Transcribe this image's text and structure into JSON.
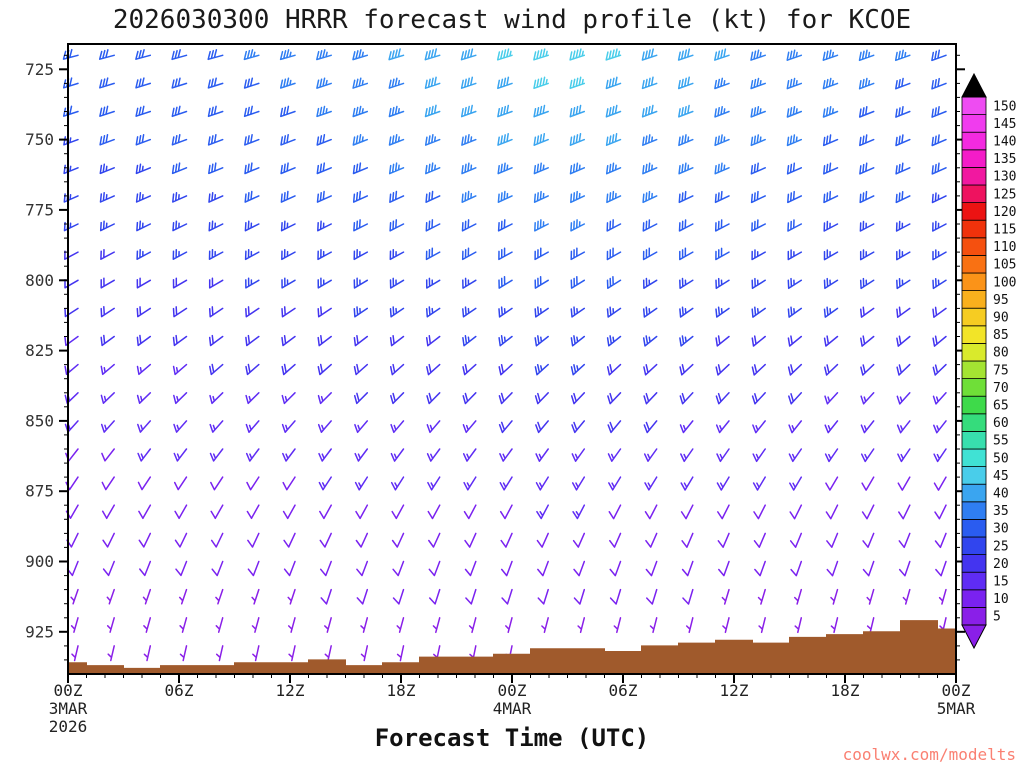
{
  "title": "2026030300 HRRR forecast wind profile (kt) for KCOE",
  "watermark": "coolwx.com/modelts",
  "watermark_color": "#fa8072",
  "chart_data": {
    "type": "heatmap",
    "subtype": "wind-barb-time-height",
    "title": "2026030300 HRRR forecast wind profile (kt) for KCOE",
    "xlabel": "Forecast Time (UTC)",
    "ylabel": "",
    "y_domain": [
      716,
      940
    ],
    "y_ticks": [
      725,
      750,
      775,
      800,
      825,
      850,
      875,
      900,
      925
    ],
    "x_ticks": [
      {
        "hour": 0,
        "label": "00Z",
        "date": "3MAR",
        "year": "2026"
      },
      {
        "hour": 6,
        "label": "06Z"
      },
      {
        "hour": 12,
        "label": "12Z"
      },
      {
        "hour": 18,
        "label": "18Z"
      },
      {
        "hour": 24,
        "label": "00Z",
        "date": "4MAR"
      },
      {
        "hour": 30,
        "label": "06Z"
      },
      {
        "hour": 36,
        "label": "12Z"
      },
      {
        "hour": 42,
        "label": "18Z"
      },
      {
        "hour": 48,
        "label": "00Z",
        "date": "5MAR"
      }
    ],
    "x_hours": [
      0,
      2,
      4,
      6,
      8,
      10,
      12,
      14,
      16,
      18,
      20,
      22,
      24,
      26,
      28,
      30,
      32,
      34,
      36,
      38,
      40,
      42,
      44,
      46,
      48
    ],
    "levels_hpa": [
      720,
      730,
      740,
      750,
      760,
      770,
      780,
      790,
      800,
      810,
      820,
      830,
      840,
      850,
      860,
      870,
      880,
      890,
      900,
      910,
      920,
      930
    ],
    "speeds_kt": [
      [
        30,
        30,
        31,
        32,
        32,
        33,
        34,
        35,
        36,
        38,
        40,
        42,
        43,
        45,
        45,
        44,
        42,
        40,
        38,
        37,
        36,
        35,
        34,
        33,
        32
      ],
      [
        30,
        30,
        30,
        31,
        32,
        32,
        33,
        34,
        35,
        37,
        39,
        41,
        42,
        43,
        43,
        42,
        41,
        39,
        37,
        36,
        35,
        34,
        33,
        32,
        31
      ],
      [
        28,
        29,
        29,
        30,
        31,
        31,
        32,
        33,
        34,
        36,
        38,
        39,
        40,
        41,
        41,
        40,
        39,
        38,
        36,
        35,
        34,
        33,
        32,
        31,
        30
      ],
      [
        27,
        28,
        28,
        29,
        30,
        30,
        31,
        32,
        33,
        35,
        36,
        37,
        38,
        39,
        39,
        38,
        37,
        36,
        35,
        34,
        33,
        32,
        31,
        30,
        29
      ],
      [
        26,
        27,
        27,
        28,
        28,
        29,
        30,
        31,
        32,
        33,
        34,
        35,
        36,
        37,
        37,
        36,
        35,
        34,
        33,
        32,
        31,
        31,
        30,
        29,
        28
      ],
      [
        25,
        25,
        26,
        26,
        27,
        28,
        28,
        29,
        30,
        31,
        32,
        33,
        34,
        35,
        35,
        34,
        33,
        32,
        31,
        30,
        30,
        29,
        28,
        28,
        27
      ],
      [
        23,
        24,
        24,
        25,
        25,
        26,
        27,
        27,
        28,
        29,
        30,
        31,
        32,
        33,
        33,
        32,
        31,
        30,
        29,
        29,
        28,
        27,
        27,
        26,
        26
      ],
      [
        22,
        22,
        23,
        23,
        24,
        24,
        25,
        26,
        26,
        27,
        28,
        29,
        30,
        31,
        31,
        30,
        29,
        28,
        28,
        27,
        26,
        26,
        25,
        25,
        24
      ],
      [
        20,
        21,
        21,
        22,
        22,
        23,
        23,
        24,
        25,
        25,
        26,
        27,
        28,
        29,
        29,
        28,
        27,
        26,
        26,
        25,
        25,
        24,
        24,
        23,
        23
      ],
      [
        19,
        19,
        20,
        20,
        21,
        21,
        22,
        22,
        23,
        23,
        24,
        25,
        26,
        27,
        27,
        26,
        25,
        25,
        24,
        24,
        23,
        23,
        22,
        22,
        21
      ],
      [
        17,
        18,
        18,
        19,
        19,
        20,
        20,
        21,
        21,
        22,
        22,
        23,
        24,
        25,
        25,
        24,
        23,
        23,
        22,
        22,
        21,
        21,
        20,
        20,
        19
      ],
      [
        16,
        16,
        17,
        17,
        18,
        18,
        19,
        19,
        20,
        20,
        21,
        21,
        22,
        23,
        23,
        22,
        22,
        21,
        21,
        20,
        20,
        19,
        19,
        18,
        18
      ],
      [
        15,
        15,
        15,
        16,
        16,
        17,
        17,
        17,
        18,
        18,
        19,
        19,
        20,
        21,
        21,
        20,
        20,
        19,
        19,
        18,
        18,
        17,
        17,
        17,
        16
      ],
      [
        13,
        14,
        14,
        14,
        15,
        15,
        15,
        16,
        16,
        16,
        17,
        17,
        18,
        19,
        19,
        18,
        18,
        17,
        17,
        16,
        16,
        16,
        15,
        15,
        15
      ],
      [
        12,
        12,
        13,
        13,
        13,
        13,
        14,
        14,
        14,
        15,
        15,
        15,
        16,
        17,
        17,
        16,
        16,
        15,
        15,
        15,
        14,
        14,
        14,
        13,
        13
      ],
      [
        11,
        11,
        11,
        12,
        12,
        12,
        12,
        13,
        13,
        13,
        13,
        14,
        14,
        15,
        15,
        14,
        14,
        13,
        13,
        13,
        13,
        12,
        12,
        12,
        12
      ],
      [
        10,
        10,
        10,
        10,
        11,
        11,
        11,
        11,
        11,
        12,
        12,
        12,
        12,
        13,
        13,
        12,
        12,
        12,
        12,
        11,
        11,
        11,
        11,
        10,
        10
      ],
      [
        9,
        9,
        9,
        9,
        9,
        10,
        10,
        10,
        10,
        10,
        10,
        11,
        11,
        11,
        11,
        11,
        11,
        10,
        10,
        10,
        10,
        10,
        9,
        9,
        9
      ],
      [
        8,
        8,
        8,
        8,
        8,
        8,
        9,
        9,
        9,
        9,
        9,
        9,
        9,
        10,
        10,
        10,
        9,
        9,
        9,
        9,
        8,
        8,
        8,
        8,
        8
      ],
      [
        7,
        7,
        7,
        7,
        7,
        7,
        7,
        8,
        8,
        8,
        8,
        8,
        8,
        8,
        8,
        8,
        8,
        8,
        7,
        7,
        7,
        7,
        7,
        7,
        7
      ],
      [
        6,
        6,
        6,
        6,
        6,
        6,
        6,
        6,
        6,
        7,
        7,
        7,
        7,
        7,
        7,
        7,
        7,
        6,
        6,
        6,
        6,
        6,
        6,
        6,
        6
      ],
      [
        5,
        5,
        5,
        5,
        5,
        5,
        5,
        5,
        5,
        5,
        5,
        6,
        6,
        6,
        6,
        6,
        5,
        5,
        5,
        5,
        5,
        5,
        5,
        5,
        5
      ]
    ],
    "dir_start_deg": [
      255,
      253,
      252,
      250,
      248,
      246,
      244,
      242,
      240,
      237,
      234,
      230,
      226,
      222,
      218,
      214,
      210,
      206,
      202,
      199,
      196,
      193
    ],
    "dir_end_deg": [
      250,
      249,
      248,
      247,
      246,
      244,
      242,
      240,
      237,
      234,
      230,
      226,
      222,
      218,
      214,
      210,
      206,
      202,
      199,
      196,
      193,
      190
    ],
    "terrain_top_hpa": [
      936,
      937,
      938,
      937,
      937,
      936,
      936,
      935,
      937,
      936,
      934,
      934,
      933,
      931,
      931,
      932,
      930,
      929,
      928,
      929,
      927,
      926,
      925,
      921,
      924
    ],
    "terrain_color": "#a05a2c",
    "colorbar": {
      "values": [
        5,
        10,
        15,
        20,
        25,
        30,
        35,
        40,
        45,
        50,
        55,
        60,
        65,
        70,
        75,
        80,
        85,
        90,
        95,
        100,
        105,
        110,
        115,
        120,
        125,
        130,
        135,
        140,
        145,
        150
      ],
      "colors": [
        "#8a1fe8",
        "#7a22f0",
        "#5f2cf4",
        "#4434f0",
        "#3145ee",
        "#2a5cf0",
        "#2f7ef2",
        "#3aa5f0",
        "#49cdea",
        "#40e2d4",
        "#38dfae",
        "#35dc7c",
        "#3eda4a",
        "#6fdf38",
        "#a4e432",
        "#d9ea2c",
        "#f2e428",
        "#f6cc22",
        "#f9b01d",
        "#fb9318",
        "#f97113",
        "#f5500f",
        "#f0320b",
        "#ec1313",
        "#ee125f",
        "#f118a0",
        "#f41cc8",
        "#f32ae0",
        "#f03cee",
        "#ee4cf2"
      ],
      "top_arrow_color": "#000000",
      "bottom_arrow_color": "#8a1fe8"
    }
  }
}
